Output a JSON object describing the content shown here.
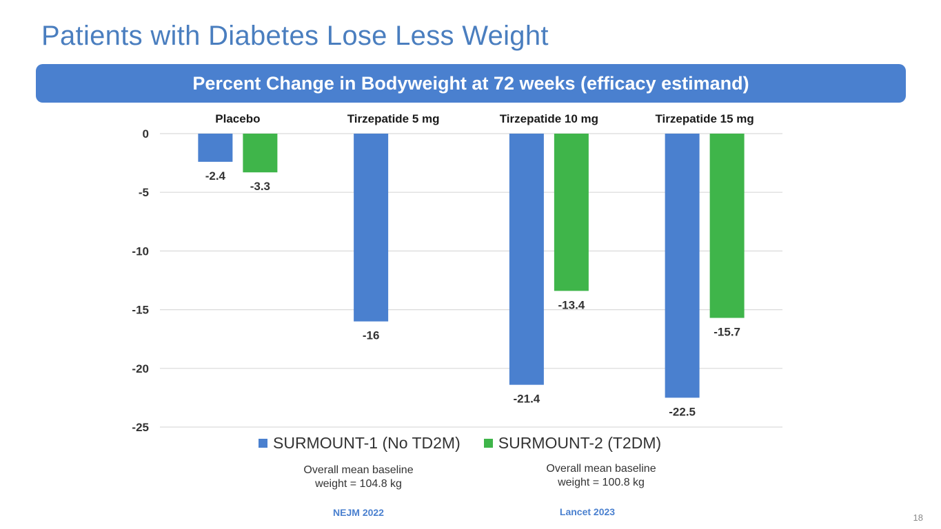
{
  "slide": {
    "title": "Patients with Diabetes Lose Less Weight",
    "banner": "Percent Change in Bodyweight at 72 weeks (efficacy estimand)",
    "page_number": "18"
  },
  "colors": {
    "title": "#4a7ebf",
    "banner": "#4a80cf",
    "series1": "#4a80cf",
    "series2": "#3fb54a",
    "grid": "#d9d9d9",
    "text": "#333333"
  },
  "notes": [
    {
      "line1": "Overall mean baseline",
      "line2": "weight = 104.8 kg"
    },
    {
      "line1": "Overall mean baseline",
      "line2": "weight = 100.8 kg"
    }
  ],
  "sources": [
    "NEJM 2022",
    "Lancet 2023"
  ],
  "chart_data": {
    "type": "bar",
    "title": "Percent Change in Bodyweight at 72 weeks (efficacy estimand)",
    "xlabel": "",
    "ylabel": "",
    "categories": [
      "Placebo",
      "Tirzepatide 5 mg",
      "Tirzepatide 10 mg",
      "Tirzepatide 15 mg"
    ],
    "series": [
      {
        "name": "SURMOUNT-1 (No TD2M)",
        "color": "#4a80cf",
        "values": [
          -2.4,
          -16,
          -21.4,
          -22.5
        ],
        "labels": [
          "-2.4",
          "-16",
          "-21.4",
          "-22.5"
        ]
      },
      {
        "name": "SURMOUNT-2 (T2DM)",
        "color": "#3fb54a",
        "values": [
          -3.3,
          null,
          -13.4,
          -15.7
        ],
        "labels": [
          "-3.3",
          "",
          "-13.4",
          "-15.7"
        ]
      }
    ],
    "yticks": [
      0,
      -5,
      -10,
      -15,
      -20,
      -25
    ],
    "ytick_labels": [
      "0",
      "-5",
      "-10",
      "-15",
      "-20",
      "-25"
    ],
    "ylim": [
      -25,
      0
    ],
    "grid": true,
    "category_labels_position": "top",
    "legend_position": "bottom"
  }
}
